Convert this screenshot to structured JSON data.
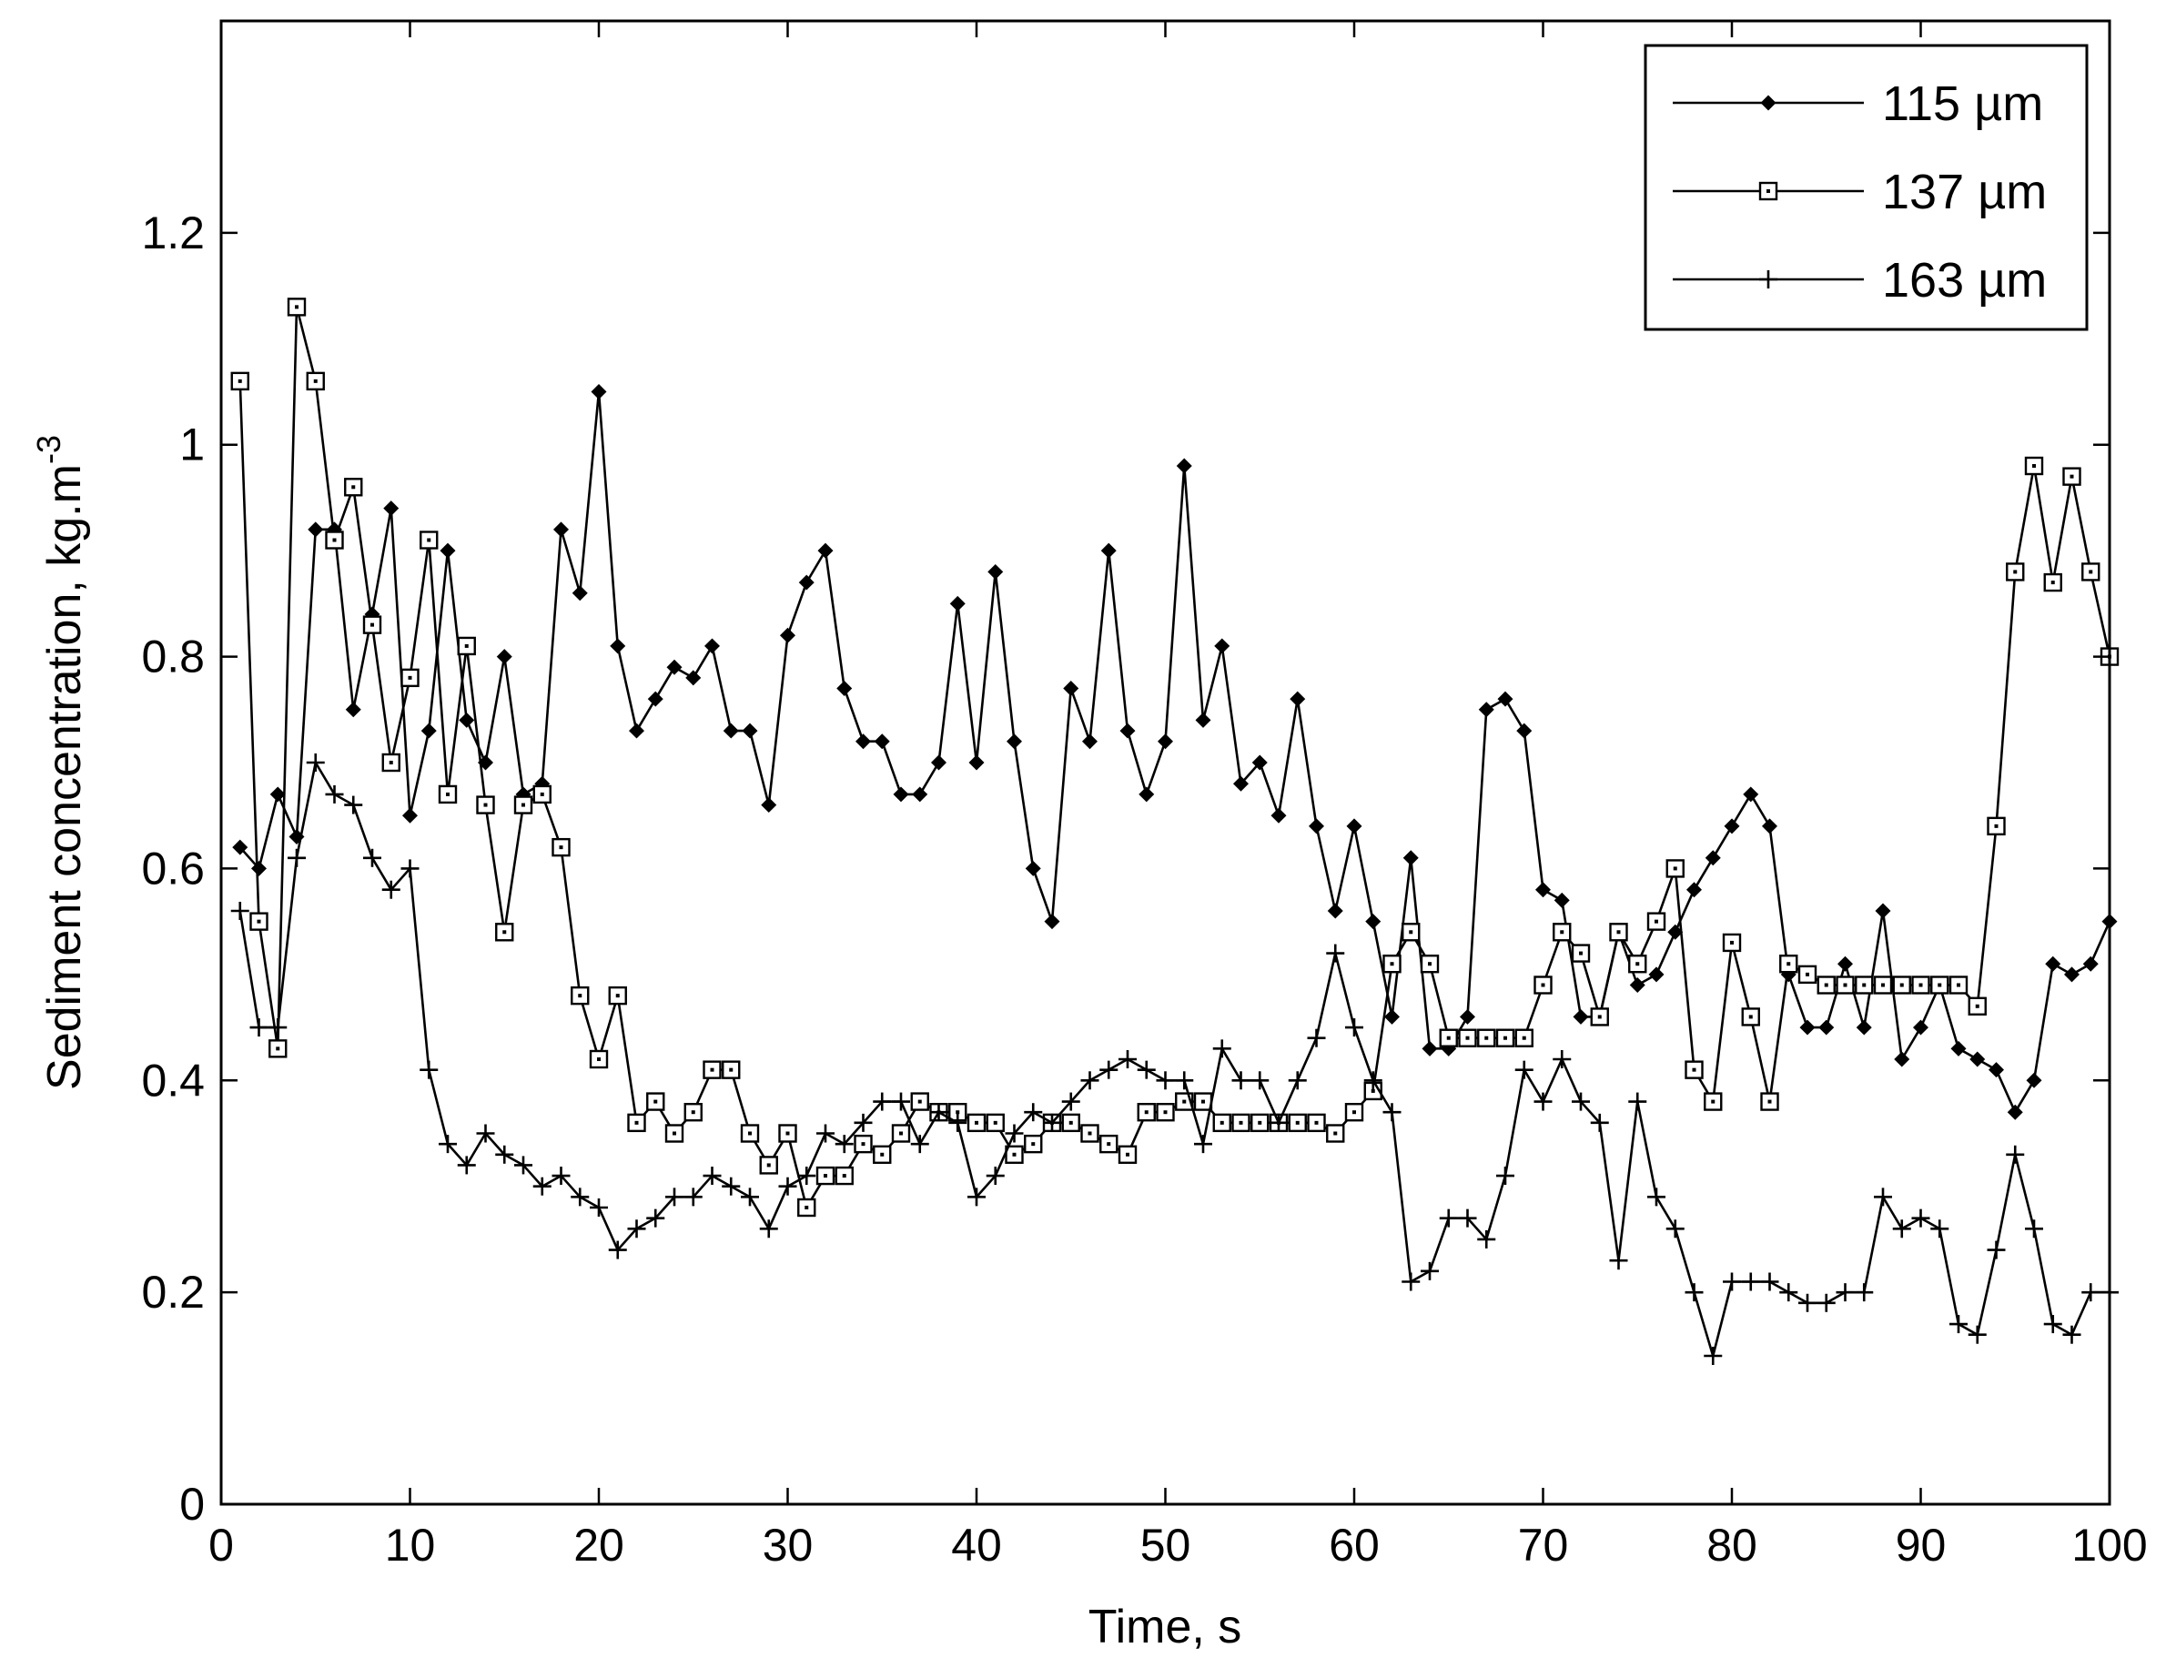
{
  "chart_data": {
    "type": "line",
    "title": "",
    "xlabel": "Time, s",
    "ylabel_main": "Sediment concentration, kg.m",
    "ylabel_sup": "-3",
    "xlim": [
      0,
      100
    ],
    "ylim": [
      0,
      1.4
    ],
    "xticks": [
      0,
      10,
      20,
      30,
      40,
      50,
      60,
      70,
      80,
      90,
      100
    ],
    "yticks": [
      0,
      0.2,
      0.4,
      0.6,
      0.8,
      1,
      1.2
    ],
    "xtick_labels": [
      "0",
      "10",
      "20",
      "30",
      "40",
      "50",
      "60",
      "70",
      "80",
      "90",
      "100"
    ],
    "ytick_labels": [
      "0",
      "0.2",
      "0.4",
      "0.6",
      "0.8",
      "1",
      "1.2"
    ],
    "grid": false,
    "legend_position": "top-right",
    "x": [
      1,
      2,
      3,
      4,
      5,
      6,
      7,
      8,
      9,
      10,
      11,
      12,
      13,
      14,
      15,
      16,
      17,
      18,
      19,
      20,
      21,
      22,
      23,
      24,
      25,
      26,
      27,
      28,
      29,
      30,
      31,
      32,
      33,
      34,
      35,
      36,
      37,
      38,
      39,
      40,
      41,
      42,
      43,
      44,
      45,
      46,
      47,
      48,
      49,
      50,
      51,
      52,
      53,
      54,
      55,
      56,
      57,
      58,
      59,
      60,
      61,
      62,
      63,
      64,
      65,
      66,
      67,
      68,
      69,
      70,
      71,
      72,
      73,
      74,
      75,
      76,
      77,
      78,
      79,
      80,
      81,
      82,
      83,
      84,
      85,
      86,
      87,
      88,
      89,
      90,
      91,
      92,
      93,
      94,
      95,
      96,
      97,
      98,
      99,
      100
    ],
    "series": [
      {
        "name": "115 µm",
        "marker": "dot",
        "values": [
          0.62,
          0.6,
          0.67,
          0.63,
          0.92,
          0.92,
          0.75,
          0.84,
          0.94,
          0.65,
          0.73,
          0.9,
          0.74,
          0.7,
          0.8,
          0.67,
          0.68,
          0.92,
          0.86,
          1.05,
          0.81,
          0.73,
          0.76,
          0.79,
          0.78,
          0.81,
          0.73,
          0.73,
          0.66,
          0.82,
          0.87,
          0.9,
          0.77,
          0.72,
          0.72,
          0.67,
          0.67,
          0.7,
          0.85,
          0.7,
          0.88,
          0.72,
          0.6,
          0.55,
          0.77,
          0.72,
          0.9,
          0.73,
          0.67,
          0.72,
          0.98,
          0.74,
          0.81,
          0.68,
          0.7,
          0.65,
          0.76,
          0.64,
          0.56,
          0.64,
          0.55,
          0.46,
          0.61,
          0.43,
          0.43,
          0.46,
          0.75,
          0.76,
          0.73,
          0.58,
          0.57,
          0.46,
          0.46,
          0.54,
          0.49,
          0.5,
          0.54,
          0.58,
          0.61,
          0.64,
          0.67,
          0.64,
          0.5,
          0.45,
          0.45,
          0.51,
          0.45,
          0.56,
          0.42,
          0.45,
          0.49,
          0.43,
          0.42,
          0.41,
          0.37,
          0.4,
          0.51,
          0.5,
          0.51,
          0.55
        ]
      },
      {
        "name": "137 µm",
        "marker": "square",
        "values": [
          1.06,
          0.55,
          0.43,
          1.13,
          1.06,
          0.91,
          0.96,
          0.83,
          0.7,
          0.78,
          0.91,
          0.67,
          0.81,
          0.66,
          0.54,
          0.66,
          0.67,
          0.62,
          0.48,
          0.42,
          0.48,
          0.36,
          0.38,
          0.35,
          0.37,
          0.41,
          0.41,
          0.35,
          0.32,
          0.35,
          0.28,
          0.31,
          0.31,
          0.34,
          0.33,
          0.35,
          0.38,
          0.37,
          0.37,
          0.36,
          0.36,
          0.33,
          0.34,
          0.36,
          0.36,
          0.35,
          0.34,
          0.33,
          0.37,
          0.37,
          0.38,
          0.38,
          0.36,
          0.36,
          0.36,
          0.36,
          0.36,
          0.36,
          0.35,
          0.37,
          0.39,
          0.51,
          0.54,
          0.51,
          0.44,
          0.44,
          0.44,
          0.44,
          0.44,
          0.49,
          0.54,
          0.52,
          0.46,
          0.54,
          0.51,
          0.55,
          0.6,
          0.41,
          0.38,
          0.53,
          0.46,
          0.38,
          0.51,
          0.5,
          0.49,
          0.49,
          0.49,
          0.49,
          0.49,
          0.49,
          0.49,
          0.49,
          0.47,
          0.64,
          0.88,
          0.98,
          0.87,
          0.97,
          0.88,
          0.8
        ]
      },
      {
        "name": "163 µm",
        "marker": "plus",
        "values": [
          0.56,
          0.45,
          0.45,
          0.61,
          0.7,
          0.67,
          0.66,
          0.61,
          0.58,
          0.6,
          0.41,
          0.34,
          0.32,
          0.35,
          0.33,
          0.32,
          0.3,
          0.31,
          0.29,
          0.28,
          0.24,
          0.26,
          0.27,
          0.29,
          0.29,
          0.31,
          0.3,
          0.29,
          0.26,
          0.3,
          0.31,
          0.35,
          0.34,
          0.36,
          0.38,
          0.38,
          0.34,
          0.37,
          0.36,
          0.29,
          0.31,
          0.35,
          0.37,
          0.36,
          0.38,
          0.4,
          0.41,
          0.42,
          0.41,
          0.4,
          0.4,
          0.34,
          0.43,
          0.4,
          0.4,
          0.36,
          0.4,
          0.44,
          0.52,
          0.45,
          0.4,
          0.37,
          0.21,
          0.22,
          0.27,
          0.27,
          0.25,
          0.31,
          0.41,
          0.38,
          0.42,
          0.38,
          0.36,
          0.23,
          0.38,
          0.29,
          0.26,
          0.2,
          0.14,
          0.21,
          0.21,
          0.21,
          0.2,
          0.19,
          0.19,
          0.2,
          0.2,
          0.29,
          0.26,
          0.27,
          0.26,
          0.17,
          0.16,
          0.24,
          0.33,
          0.26,
          0.17,
          0.16,
          0.2,
          0.2
        ]
      }
    ]
  }
}
